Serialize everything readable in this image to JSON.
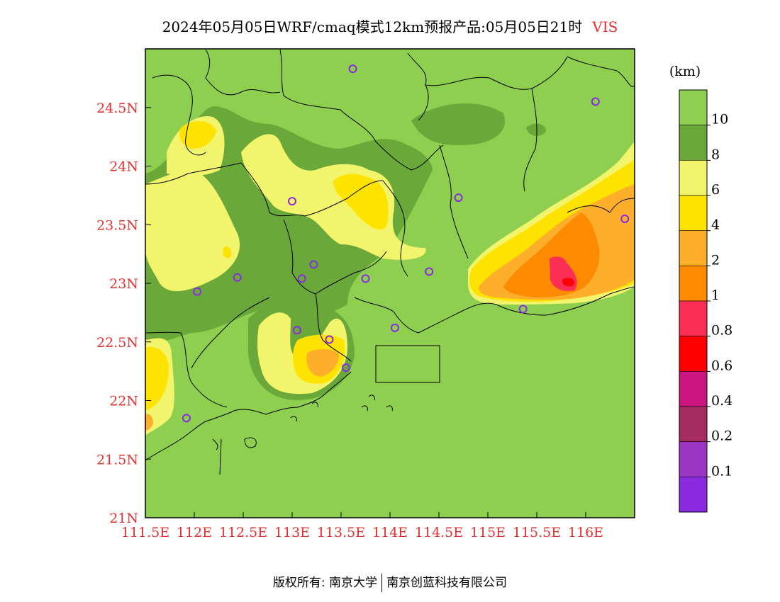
{
  "title": {
    "main": "2024年05月05日WRF/cmaq模式12km预报产品:05月05日21时",
    "variable": "VIS"
  },
  "map": {
    "lon_labels": [
      "111.5E",
      "112E",
      "112.5E",
      "113E",
      "113.5E",
      "114E",
      "114.5E",
      "115E",
      "115.5E",
      "116E"
    ],
    "lat_labels": [
      "24.5N",
      "24N",
      "23.5N",
      "23N",
      "22.5N",
      "22N",
      "21.5N",
      "21N"
    ],
    "lon_range": [
      111.5,
      116.5
    ],
    "lat_range": [
      21.0,
      25.0
    ],
    "background_color": "#8ecf50",
    "axis_label_color": "#e8302e",
    "stations": [
      {
        "lon": 113.62,
        "lat": 24.83
      },
      {
        "lon": 116.1,
        "lat": 24.55
      },
      {
        "lon": 113.0,
        "lat": 23.7
      },
      {
        "lon": 114.7,
        "lat": 23.73
      },
      {
        "lon": 116.4,
        "lat": 23.55
      },
      {
        "lon": 113.22,
        "lat": 23.16
      },
      {
        "lon": 112.44,
        "lat": 23.05
      },
      {
        "lon": 113.1,
        "lat": 23.04
      },
      {
        "lon": 113.75,
        "lat": 23.04
      },
      {
        "lon": 114.4,
        "lat": 23.1
      },
      {
        "lon": 112.03,
        "lat": 22.93
      },
      {
        "lon": 115.36,
        "lat": 22.78
      },
      {
        "lon": 113.05,
        "lat": 22.6
      },
      {
        "lon": 113.38,
        "lat": 22.52
      },
      {
        "lon": 114.05,
        "lat": 22.62
      },
      {
        "lon": 113.55,
        "lat": 22.28
      },
      {
        "lon": 111.92,
        "lat": 21.85
      }
    ]
  },
  "colorbar": {
    "unit": "(km)",
    "levels": [
      {
        "label": "10",
        "color": "#8ecf50"
      },
      {
        "label": "8",
        "color": "#6aa83a"
      },
      {
        "label": "6",
        "color": "#f2f56c"
      },
      {
        "label": "4",
        "color": "#ffe300"
      },
      {
        "label": "2",
        "color": "#fdae2a"
      },
      {
        "label": "1",
        "color": "#fd8a00"
      },
      {
        "label": "0.8",
        "color": "#fb2e55"
      },
      {
        "label": "0.6",
        "color": "#ff0000"
      },
      {
        "label": "0.4",
        "color": "#cc1580"
      },
      {
        "label": "0.2",
        "color": "#a62c60"
      },
      {
        "label": "0.1",
        "color": "#9b36c4"
      },
      {
        "label": "",
        "color": "#8a2be2"
      }
    ]
  },
  "footer": {
    "left": "版权所有: 南京大学",
    "right": "南京创蓝科技有限公司"
  }
}
